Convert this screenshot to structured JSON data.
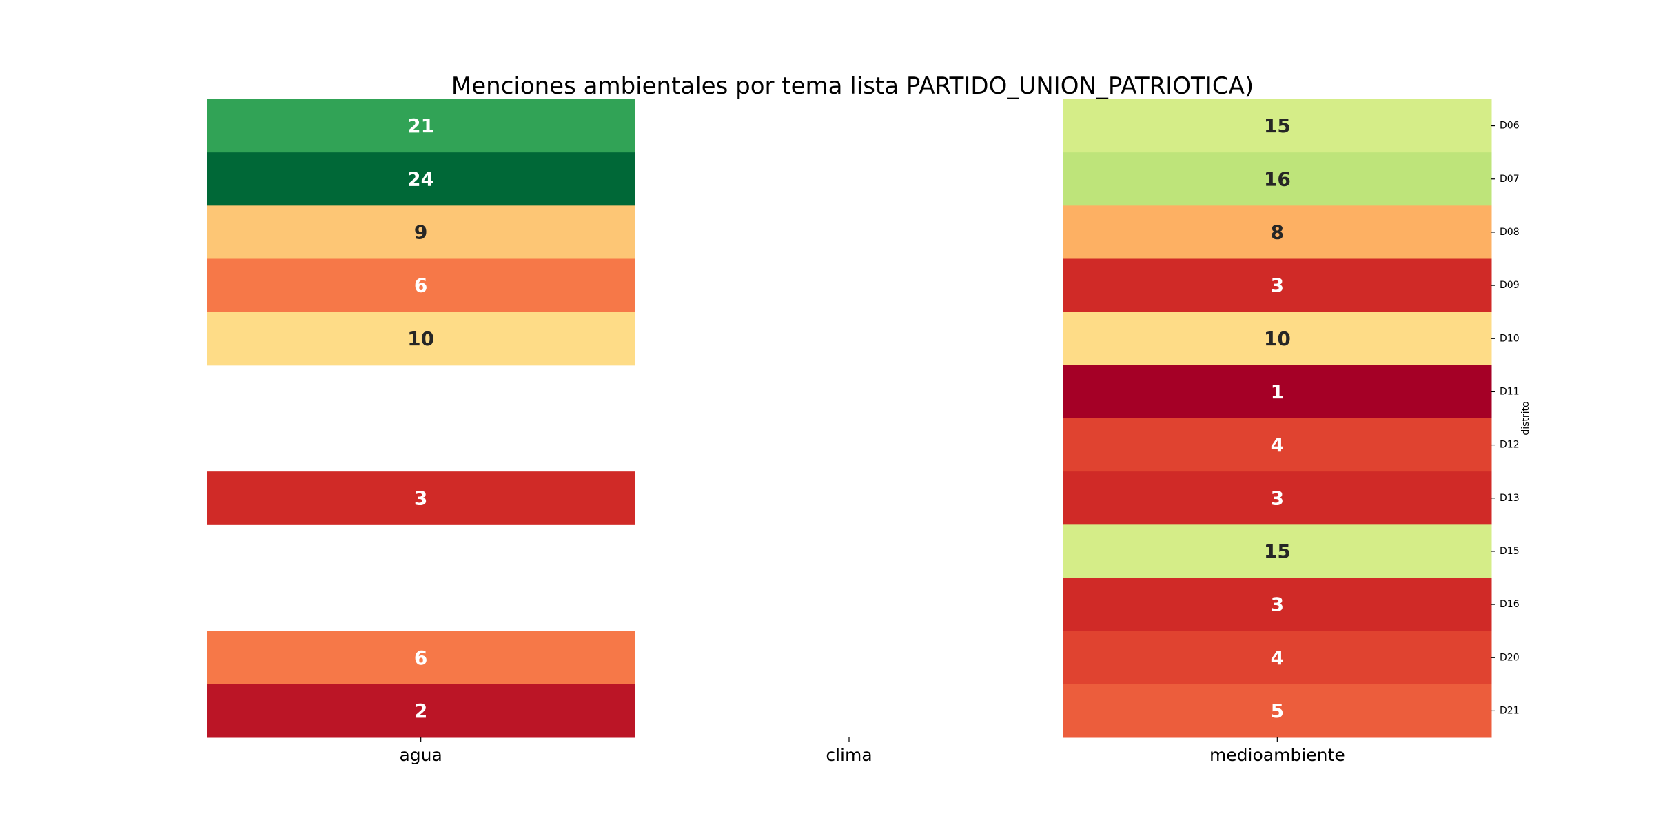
{
  "chart_data": {
    "type": "heatmap",
    "title": "Menciones ambientales por tema lista PARTIDO_UNION_PATRIOTICA)",
    "xlabel": "",
    "ylabel": "distrito",
    "columns": [
      "agua",
      "clima",
      "medioambiente"
    ],
    "rows": [
      "D06",
      "D07",
      "D08",
      "D09",
      "D10",
      "D11",
      "D12",
      "D13",
      "D15",
      "D16",
      "D20",
      "D21"
    ],
    "values": [
      [
        21,
        null,
        15
      ],
      [
        24,
        null,
        16
      ],
      [
        9,
        null,
        8
      ],
      [
        6,
        null,
        3
      ],
      [
        10,
        null,
        10
      ],
      [
        null,
        null,
        1
      ],
      [
        null,
        null,
        4
      ],
      [
        3,
        null,
        3
      ],
      [
        null,
        null,
        15
      ],
      [
        null,
        null,
        3
      ],
      [
        6,
        null,
        4
      ],
      [
        2,
        null,
        5
      ]
    ],
    "colormap": "RdYlGn",
    "color_range": [
      1,
      24
    ],
    "annotations": true,
    "legend": "none",
    "grid": false
  }
}
